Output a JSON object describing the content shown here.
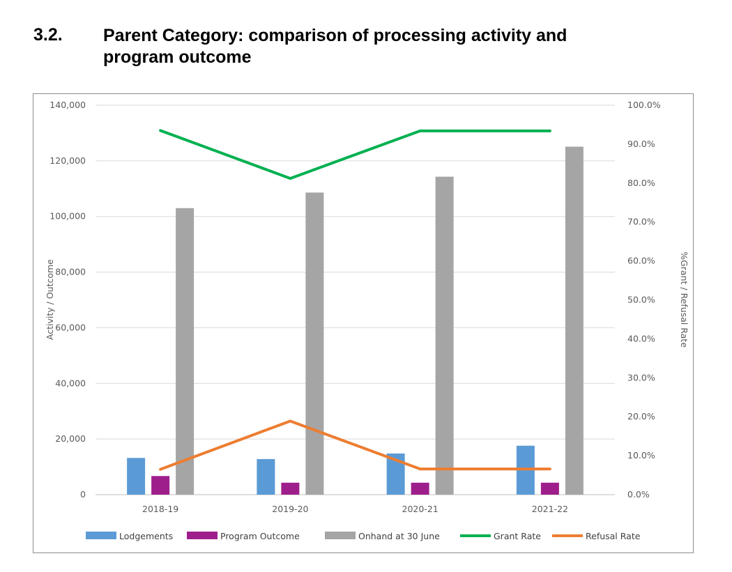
{
  "heading": {
    "number": "3.2.",
    "title": "Parent Category: comparison of processing activity and program outcome"
  },
  "chart_data": {
    "type": "bar",
    "categories": [
      "2018-19",
      "2019-20",
      "2020-21",
      "2021-22"
    ],
    "series": [
      {
        "name": "Lodgements",
        "kind": "bar",
        "axis": "left",
        "color": "#5B9BD5",
        "values": [
          13200,
          12800,
          14800,
          17600
        ]
      },
      {
        "name": "Program Outcome",
        "kind": "bar",
        "axis": "left",
        "color": "#9E1F8C",
        "values": [
          6700,
          4300,
          4300,
          4300
        ]
      },
      {
        "name": "Onhand at 30 June",
        "kind": "bar",
        "axis": "left",
        "color": "#A5A5A5",
        "values": [
          103000,
          108600,
          114300,
          125100
        ]
      },
      {
        "name": "Grant Rate",
        "kind": "line",
        "axis": "right",
        "color": "#00B050",
        "values": [
          93.5,
          81.2,
          93.4,
          93.4
        ]
      },
      {
        "name": "Refusal Rate",
        "kind": "line",
        "axis": "right",
        "color": "#ED7D31",
        "values": [
          6.5,
          18.9,
          6.6,
          6.6
        ]
      }
    ],
    "ylabel": "Activity / Outcome",
    "ylim": [
      0,
      140000
    ],
    "yticks": [
      "0",
      "20,000",
      "40,000",
      "60,000",
      "80,000",
      "100,000",
      "120,000",
      "140,000"
    ],
    "y2label": "%Grant / Refusal Rate",
    "y2lim": [
      0,
      100
    ],
    "y2ticks": [
      "0.0%",
      "10.0%",
      "20.0%",
      "30.0%",
      "40.0%",
      "50.0%",
      "60.0%",
      "70.0%",
      "80.0%",
      "90.0%",
      "100.0%"
    ],
    "grid": true,
    "legend_position": "bottom"
  }
}
